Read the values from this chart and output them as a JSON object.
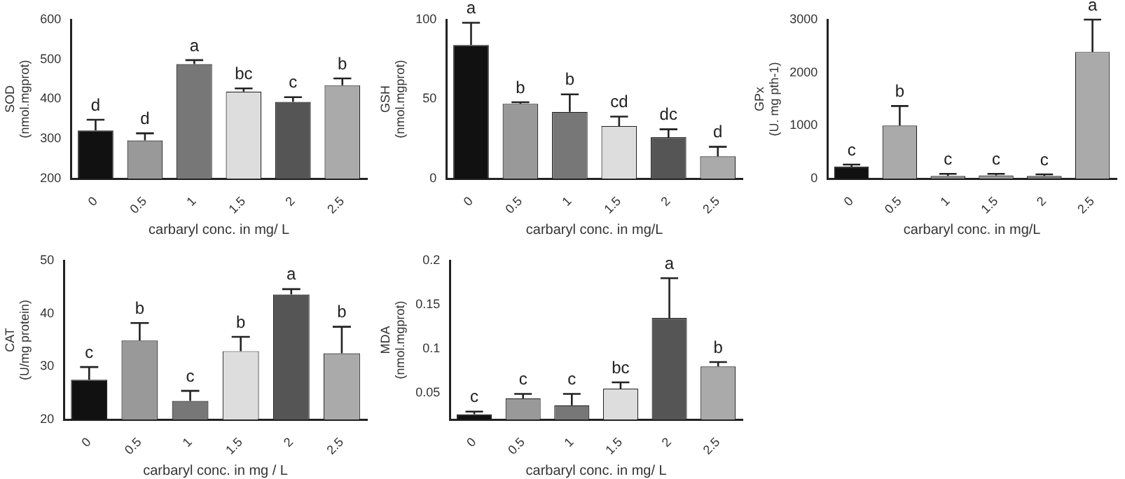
{
  "chart_data": [
    {
      "type": "bar",
      "ylabel": "SOD\n(nmol.mgprot)",
      "xlabel": "carbaryl conc. in mg/ L",
      "categories": [
        "0",
        "0.5",
        "1",
        "1.5",
        "2",
        "2.5"
      ],
      "values": [
        321,
        296,
        488,
        419,
        393,
        435
      ],
      "colors": [
        "#111111",
        "#999999",
        "#777777",
        "#dddddd",
        "#555555",
        "#aaaaaa"
      ],
      "errors": [
        [
          321,
          348
        ],
        [
          296,
          314
        ],
        [
          488,
          498
        ],
        [
          419,
          427
        ],
        [
          393,
          405
        ],
        [
          435,
          452
        ]
      ],
      "ylim": [
        200,
        600
      ],
      "yticks": [
        200,
        300,
        400,
        500,
        600
      ],
      "grid": false,
      "annotations": [
        {
          "text": "d",
          "x": "0",
          "y": 348
        },
        {
          "text": "d",
          "x": "0.5",
          "y": 314
        },
        {
          "text": "a",
          "x": "1",
          "y": 498
        },
        {
          "text": "bc",
          "x": "1.5",
          "y": 427
        },
        {
          "text": "c",
          "x": "2",
          "y": 405
        },
        {
          "text": "b",
          "x": "2.5",
          "y": 452
        }
      ]
    },
    {
      "type": "bar",
      "ylabel": "GSH\n(nmol.mgprot)",
      "xlabel": "carbaryl conc. in mg/L",
      "categories": [
        "0",
        "0.5",
        "1",
        "1.5",
        "2",
        "2.5"
      ],
      "values": [
        84,
        47,
        42,
        33,
        26,
        14
      ],
      "colors": [
        "#111111",
        "#999999",
        "#777777",
        "#dddddd",
        "#555555",
        "#aaaaaa"
      ],
      "errors": [
        [
          84,
          98
        ],
        [
          47,
          48
        ],
        [
          42,
          53
        ],
        [
          33,
          39
        ],
        [
          26,
          31
        ],
        [
          14,
          20
        ]
      ],
      "ylim": [
        0,
        100
      ],
      "yticks": [
        0,
        50,
        100
      ],
      "grid": false,
      "annotations": [
        {
          "text": "a",
          "x": "0",
          "y": 98
        },
        {
          "text": "b",
          "x": "0.5",
          "y": 48
        },
        {
          "text": "b",
          "x": "1",
          "y": 53
        },
        {
          "text": "cd",
          "x": "1.5",
          "y": 39
        },
        {
          "text": "dc",
          "x": "2",
          "y": 31
        },
        {
          "text": "d",
          "x": "2.5",
          "y": 20
        }
      ]
    },
    {
      "type": "bar",
      "ylabel": "GPx\n(U. mg pth-1)",
      "xlabel": "carbaryl conc. in mg/L",
      "categories": [
        "0",
        "0.5",
        "1",
        "1.5",
        "2",
        "2.5"
      ],
      "values": [
        224,
        1000,
        50,
        60,
        50,
        2390
      ],
      "colors": [
        "#111111",
        "#aaaaaa",
        "#888888",
        "#999999",
        "#777777",
        "#aaaaaa"
      ],
      "errors": [
        [
          224,
          265
        ],
        [
          1000,
          1370
        ],
        [
          50,
          90
        ],
        [
          60,
          90
        ],
        [
          50,
          80
        ],
        [
          2390,
          3000
        ]
      ],
      "ylim": [
        0,
        3000
      ],
      "yticks": [
        0,
        1000,
        2000,
        3000
      ],
      "grid": false,
      "annotations": [
        {
          "text": "c",
          "x": "0",
          "y": 265
        },
        {
          "text": "b",
          "x": "0.5",
          "y": 1370
        },
        {
          "text": "c",
          "x": "1",
          "y": 90
        },
        {
          "text": "c",
          "x": "1.5",
          "y": 90
        },
        {
          "text": "c",
          "x": "2",
          "y": 80
        },
        {
          "text": "a",
          "x": "2.5",
          "y": 3000
        }
      ]
    },
    {
      "type": "bar",
      "ylabel": "CAT\n(U/mg protein)",
      "xlabel": "carbaryl conc. in mg / L",
      "categories": [
        "0",
        "0.5",
        "1",
        "1.5",
        "2",
        "2.5"
      ],
      "values": [
        27.5,
        34.9,
        23.5,
        32.9,
        43.6,
        32.5
      ],
      "colors": [
        "#111111",
        "#999999",
        "#777777",
        "#dddddd",
        "#555555",
        "#aaaaaa"
      ],
      "errors": [
        [
          27.5,
          29.9
        ],
        [
          34.9,
          38.2
        ],
        [
          23.5,
          25.4
        ],
        [
          32.9,
          35.6
        ],
        [
          43.6,
          44.6
        ],
        [
          32.5,
          37.5
        ]
      ],
      "ylim": [
        20,
        50
      ],
      "yticks": [
        20,
        30,
        40,
        50
      ],
      "grid": false,
      "annotations": [
        {
          "text": "c",
          "x": "0",
          "y": 29.9
        },
        {
          "text": "b",
          "x": "0.5",
          "y": 38.2
        },
        {
          "text": "c",
          "x": "1",
          "y": 25.4
        },
        {
          "text": "b",
          "x": "1.5",
          "y": 35.6
        },
        {
          "text": "a",
          "x": "2",
          "y": 44.6
        },
        {
          "text": "b",
          "x": "2.5",
          "y": 37.5
        }
      ]
    },
    {
      "type": "bar",
      "ylabel": "MDA\n(nmol.mgprot)",
      "xlabel": "carbaryl conc. in mg/ L",
      "categories": [
        "0",
        "0.5",
        "1",
        "1.5",
        "2",
        "2.5"
      ],
      "values": [
        0.026,
        0.044,
        0.036,
        0.055,
        0.135,
        0.08
      ],
      "colors": [
        "#111111",
        "#999999",
        "#777777",
        "#dddddd",
        "#555555",
        "#aaaaaa"
      ],
      "errors": [
        [
          0.026,
          0.029
        ],
        [
          0.044,
          0.049
        ],
        [
          0.036,
          0.049
        ],
        [
          0.055,
          0.062
        ],
        [
          0.135,
          0.18
        ],
        [
          0.08,
          0.085
        ]
      ],
      "ylim": [
        0.02,
        0.2
      ],
      "yticks": [
        0.05,
        0.1,
        0.15,
        0.2
      ],
      "grid": false,
      "annotations": [
        {
          "text": "c",
          "x": "0",
          "y": 0.029
        },
        {
          "text": "c",
          "x": "0.5",
          "y": 0.049
        },
        {
          "text": "c",
          "x": "1",
          "y": 0.049
        },
        {
          "text": "bc",
          "x": "1.5",
          "y": 0.062
        },
        {
          "text": "a",
          "x": "2",
          "y": 0.18
        },
        {
          "text": "b",
          "x": "2.5",
          "y": 0.085
        }
      ]
    }
  ]
}
